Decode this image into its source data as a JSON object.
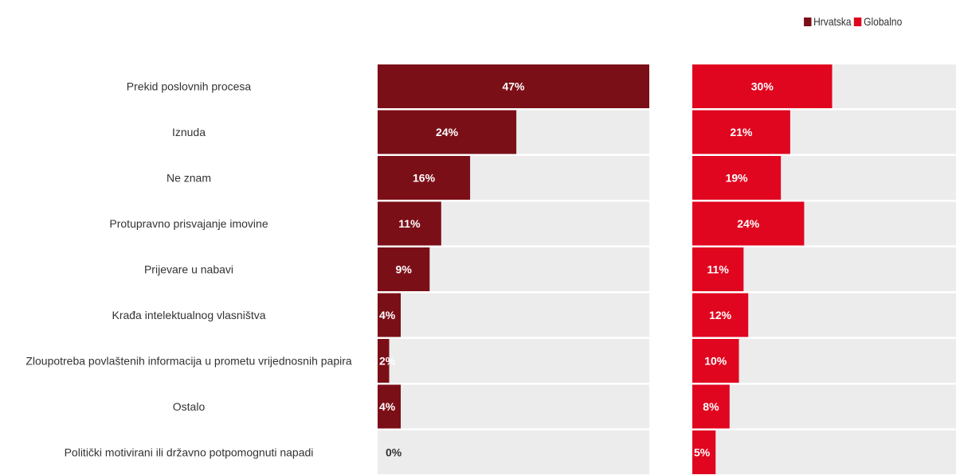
{
  "chart_data": {
    "type": "bar",
    "orientation": "horizontal",
    "legend_position": "top-right",
    "grid": false,
    "xlim": [
      0,
      47
    ],
    "categories": [
      "Prekid poslovnih procesa",
      "Iznuda",
      "Ne znam",
      "Protupravno prisvajanje imovine",
      "Prijevare u nabavi",
      "Krađa intelektualnog vlasništva",
      "Zloupotreba povlaštenih informacija u prometu vrijednosnih papira",
      "Ostalo",
      "Politički motivirani ili državno potpomognuti napadi"
    ],
    "series": [
      {
        "name": "Hrvatska",
        "color": "#7b0f17",
        "values": [
          47,
          24,
          16,
          11,
          9,
          4,
          2,
          4,
          0
        ],
        "labels": [
          "47%",
          "24%",
          "16%",
          "11%",
          "9%",
          "4%",
          "2%",
          "4%",
          "0%"
        ]
      },
      {
        "name": "Globalno",
        "color": "#e0061f",
        "values": [
          30,
          21,
          19,
          24,
          11,
          12,
          10,
          8,
          5
        ],
        "labels": [
          "30%",
          "21%",
          "19%",
          "24%",
          "11%",
          "12%",
          "10%",
          "8%",
          "5%"
        ]
      }
    ],
    "track_color": "#ececec"
  }
}
